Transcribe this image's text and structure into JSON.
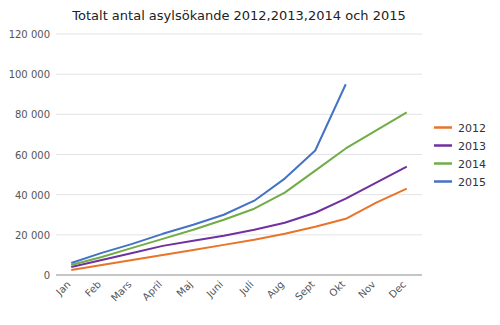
{
  "chart_data": {
    "type": "line",
    "title": "Totalt antal asylsökande 2012,2013,2014 och 2015",
    "categories": [
      "Jan",
      "Feb",
      "Mars",
      "April",
      "Maj",
      "Juni",
      "Juli",
      "Aug",
      "Sept",
      "Okt",
      "Nov",
      "Dec"
    ],
    "series": [
      {
        "name": "2012",
        "color": "#E8742A",
        "values": [
          2500,
          5000,
          7500,
          10000,
          12500,
          15000,
          17500,
          20500,
          24000,
          28000,
          36000,
          43000
        ]
      },
      {
        "name": "2013",
        "color": "#7030A0",
        "values": [
          4000,
          7500,
          11000,
          14500,
          17000,
          19500,
          22500,
          26000,
          31000,
          38000,
          46000,
          54000
        ]
      },
      {
        "name": "2014",
        "color": "#70AD47",
        "values": [
          5000,
          9000,
          13500,
          18000,
          22500,
          27500,
          33000,
          41000,
          52000,
          63000,
          72000,
          81000
        ]
      },
      {
        "name": "2015",
        "color": "#4472C4",
        "values": [
          6000,
          11000,
          15500,
          20500,
          25000,
          30000,
          37000,
          48000,
          62000,
          95000,
          null,
          null
        ]
      }
    ],
    "ylim": [
      0,
      120000
    ],
    "yticks": [
      0,
      {
        "value": 20000,
        "label": "20 000"
      },
      {
        "value": 40000,
        "label": "40 000"
      },
      {
        "value": 60000,
        "label": "60 000"
      },
      {
        "value": 80000,
        "label": "80 000"
      },
      {
        "value": 100000,
        "label": "100 000"
      },
      {
        "value": 120000,
        "label": "120 000"
      }
    ],
    "grid": true,
    "legend": "right"
  }
}
